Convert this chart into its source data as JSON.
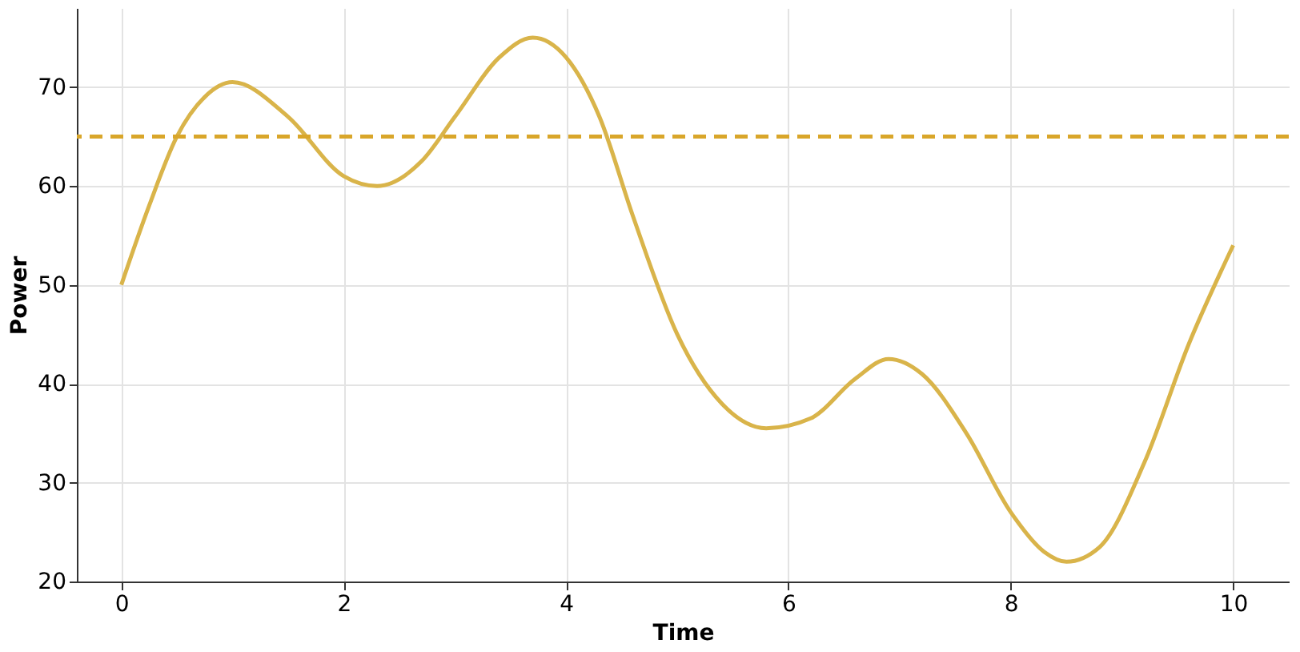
{
  "chart_data": {
    "type": "line",
    "xlabel": "Time",
    "ylabel": "Power",
    "x": [
      0,
      0.25,
      0.5,
      0.75,
      1,
      1.5,
      2,
      2.3,
      2.7,
      3,
      3.4,
      3.7,
      4,
      4.3,
      4.6,
      5,
      5.4,
      5.8,
      6.2,
      6.6,
      6.9,
      7.2,
      7.6,
      8,
      8.3,
      8.5,
      8.8,
      9.2,
      9.6,
      10
    ],
    "series": [
      {
        "color": "#d9b44a",
        "values": [
          50,
          58,
          65,
          69,
          70.5,
          67,
          61,
          60,
          62.5,
          67,
          73,
          75,
          73,
          67,
          57,
          45,
          38,
          35.5,
          36.5,
          40.5,
          42.5,
          41,
          35,
          27,
          23,
          22,
          23.5,
          32,
          44,
          54
        ]
      }
    ],
    "xlim": [
      -0.4,
      10.5
    ],
    "ylim": [
      20,
      78
    ],
    "xticks": [
      0,
      2,
      4,
      6,
      8,
      10
    ],
    "yticks": [
      20,
      30,
      40,
      50,
      60,
      70
    ],
    "ref_lines": [
      {
        "axis": "y",
        "value": 65,
        "color": "#d9a62a",
        "line_style": "dashed"
      }
    ],
    "grid": true,
    "line_style": "solid",
    "marker": "none"
  }
}
